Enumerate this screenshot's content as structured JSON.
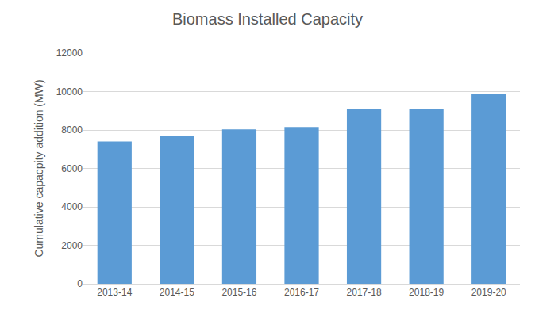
{
  "chart_data": {
    "type": "bar",
    "title": "Biomass Installed Capacity",
    "y_label": "Cumulative capacpity addition (MW)",
    "categories": [
      "2013-14",
      "2014-15",
      "2015-16",
      "2016-17",
      "2017-18",
      "2018-19",
      "2019-20"
    ],
    "values": [
      7400,
      7680,
      8030,
      8150,
      9080,
      9100,
      9860
    ],
    "color": "#5b9bd5",
    "ylim": [
      0,
      12000
    ],
    "yticks": [
      0,
      2000,
      4000,
      6000,
      8000,
      10000,
      12000
    ],
    "grid": true
  }
}
